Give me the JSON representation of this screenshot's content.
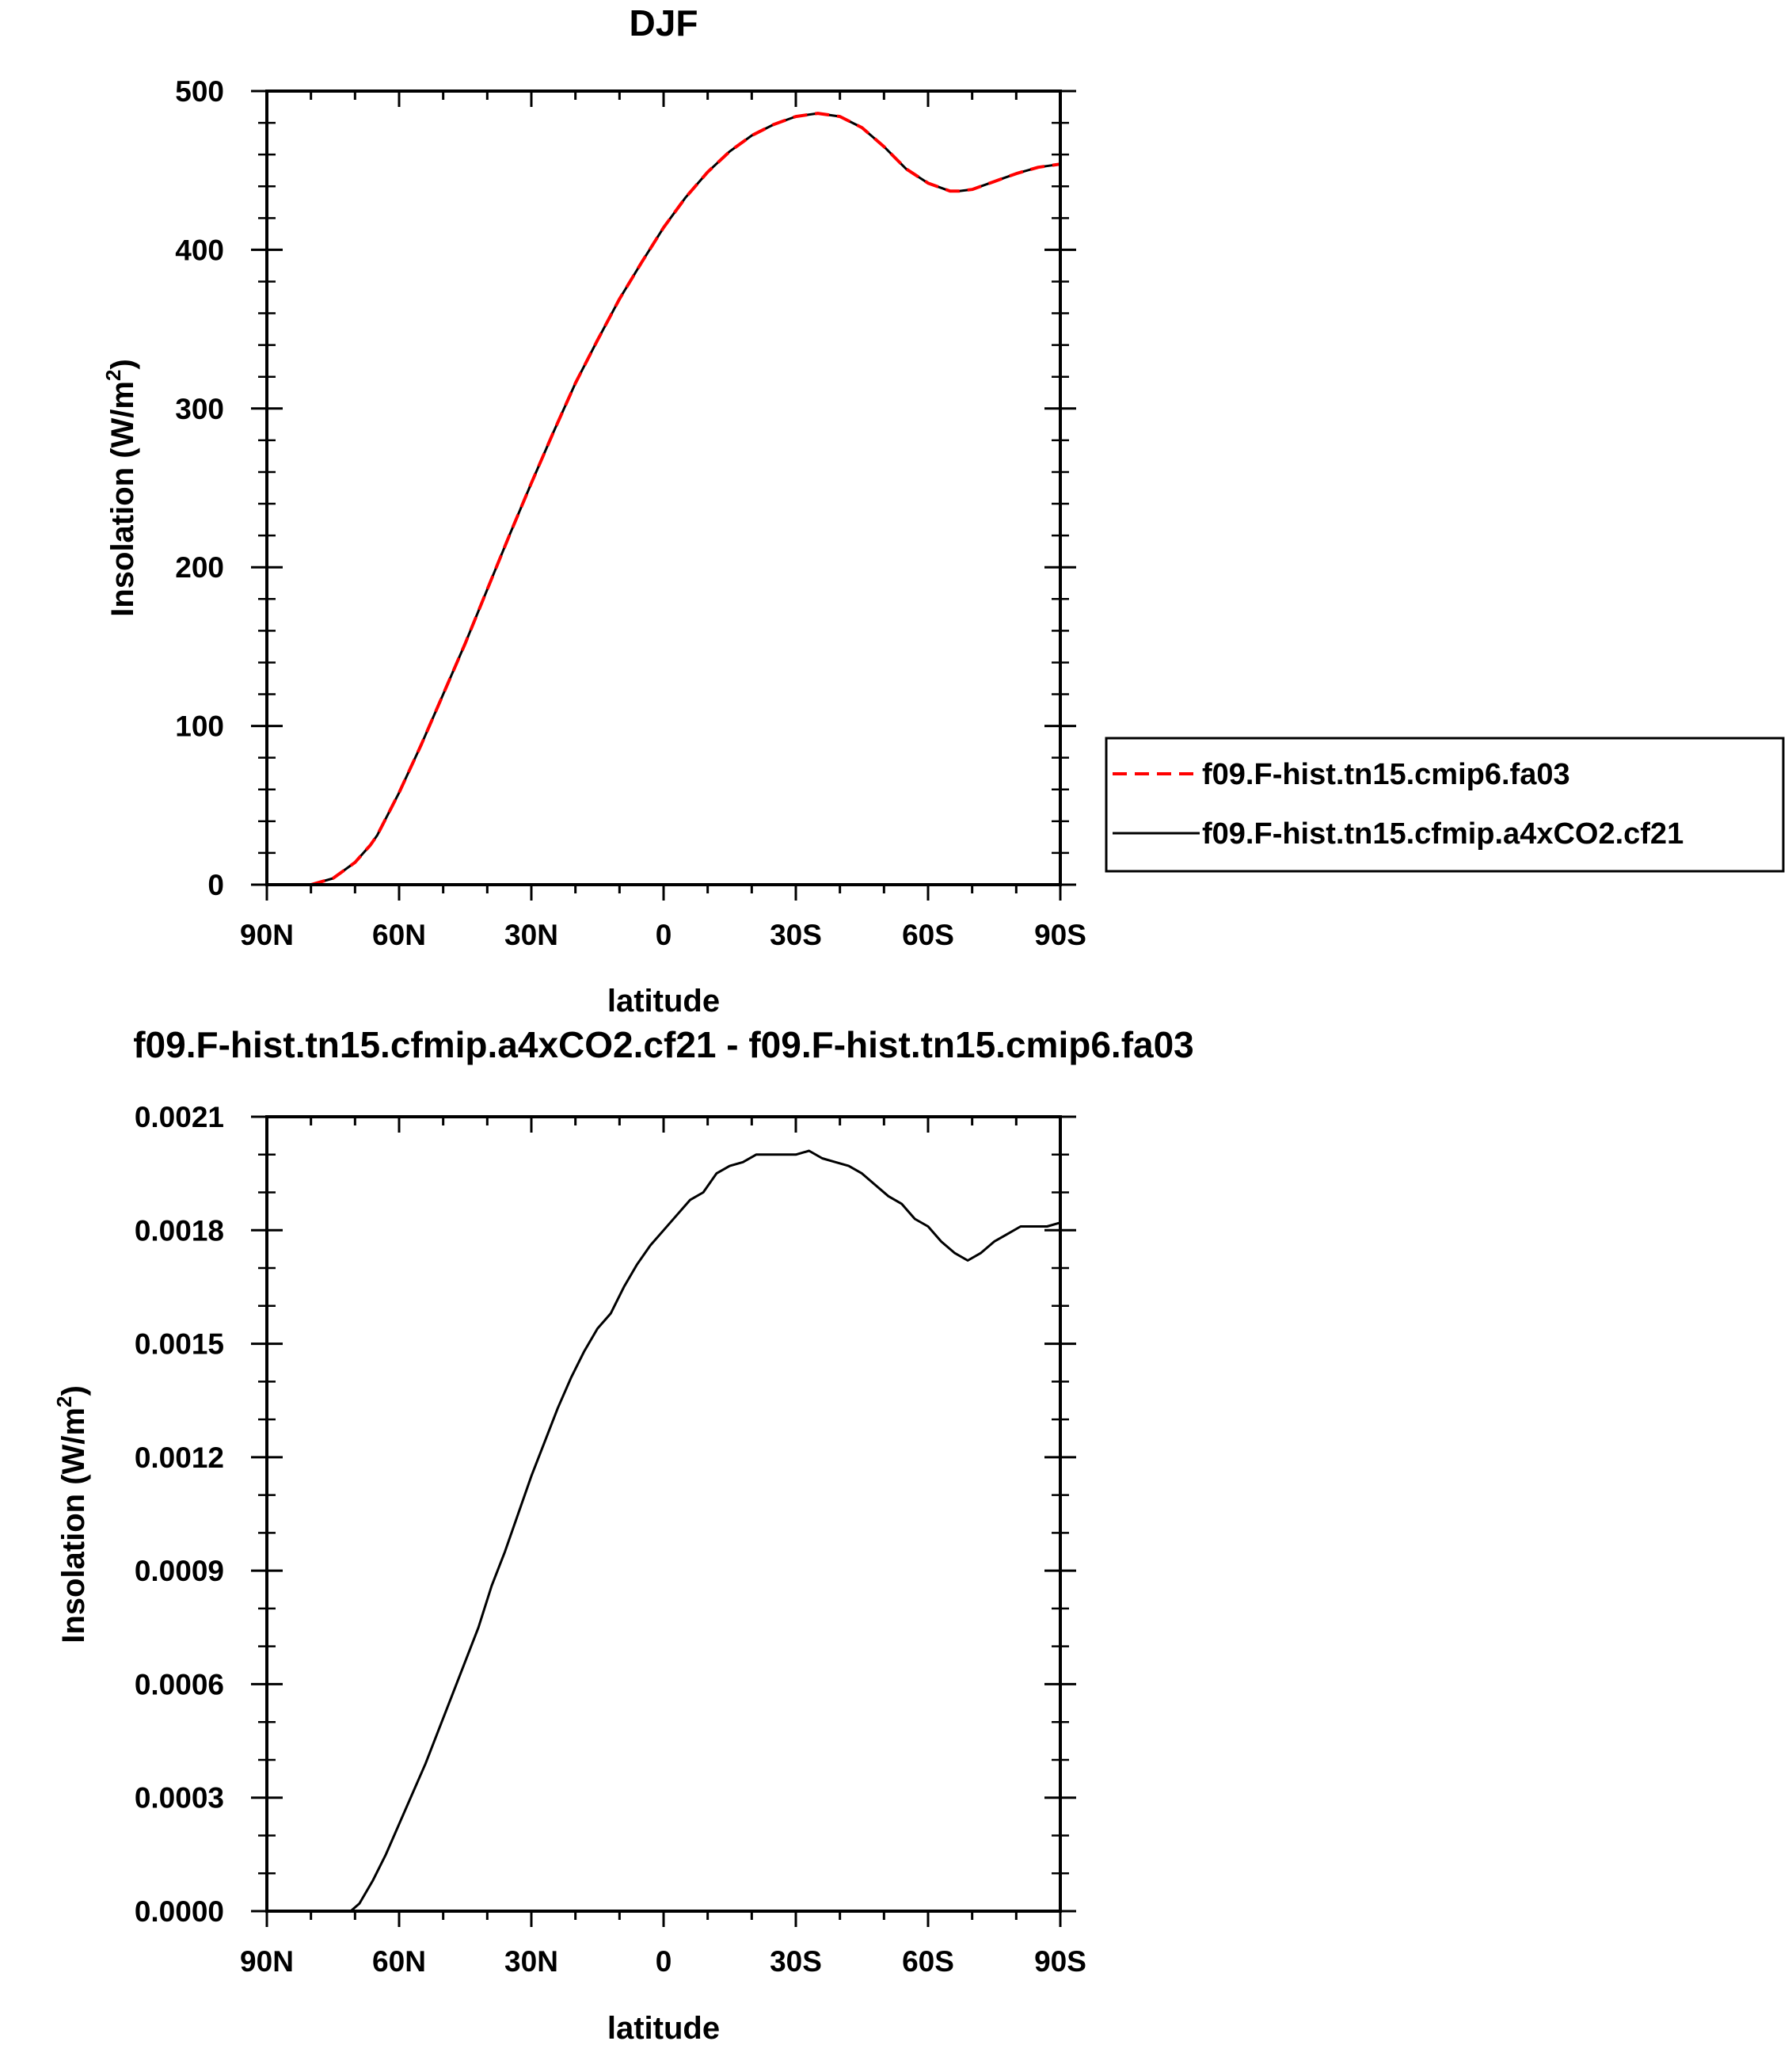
{
  "chart_data": [
    {
      "type": "line",
      "title": "DJF",
      "xlabel": "latitude",
      "ylabel": "Insolation (W/m",
      "ylabel_sup": "2",
      "ylabel_close": ")",
      "xlim": [
        -90,
        90
      ],
      "ylim": [
        0,
        500
      ],
      "x_ticks": [
        -90,
        -60,
        -30,
        0,
        30,
        60,
        90
      ],
      "x_tick_labels": [
        "90N",
        "60N",
        "30N",
        "0",
        "30S",
        "60S",
        "90S"
      ],
      "y_ticks": [
        0,
        100,
        200,
        300,
        400,
        500
      ],
      "y_tick_labels": [
        "0",
        "100",
        "200",
        "300",
        "400",
        "500"
      ],
      "legend_position": "right, outside",
      "x": [
        -90,
        -85,
        -80,
        -75,
        -70,
        -66.5,
        -65,
        -60,
        -55,
        -50,
        -45,
        -40,
        -35,
        -30,
        -25,
        -20,
        -15,
        -10,
        -5,
        0,
        5,
        10,
        15,
        20,
        25,
        30,
        35,
        40,
        45,
        50,
        55,
        60,
        65,
        67,
        70,
        75,
        80,
        85,
        90
      ],
      "series": [
        {
          "name": "f09.F-hist.tn15.cmip6.fa03",
          "color": "#ff0000",
          "style": "dashed",
          "values": [
            0,
            0,
            0,
            4,
            14,
            25,
            31,
            58,
            88,
            120,
            152,
            186,
            220,
            253,
            285,
            316,
            343,
            369,
            392,
            414,
            433,
            449,
            462,
            472,
            479,
            484,
            486,
            484,
            477,
            465,
            451,
            442,
            437,
            437,
            438,
            443,
            448,
            452,
            454
          ]
        },
        {
          "name": "f09.F-hist.tn15.cfmip.a4xCO2.cf21",
          "color": "#000000",
          "style": "solid",
          "values": [
            0,
            0,
            0,
            4,
            14,
            25,
            31,
            58,
            88,
            120,
            152,
            186,
            220,
            253,
            285,
            316,
            343,
            369,
            392,
            414,
            433,
            449,
            462,
            472,
            479,
            484,
            486,
            484,
            477,
            465,
            451,
            442,
            437,
            437,
            438,
            443,
            448,
            452,
            454
          ]
        }
      ]
    },
    {
      "type": "line",
      "title": "f09.F-hist.tn15.cfmip.a4xCO2.cf21 - f09.F-hist.tn15.cmip6.fa03",
      "xlabel": "latitude",
      "ylabel": "Insolation (W/m",
      "ylabel_sup": "2",
      "ylabel_close": ")",
      "xlim": [
        -90,
        90
      ],
      "ylim": [
        0,
        0.0021
      ],
      "x_ticks": [
        -90,
        -60,
        -30,
        0,
        30,
        60,
        90
      ],
      "x_tick_labels": [
        "90N",
        "60N",
        "30N",
        "0",
        "30S",
        "60S",
        "90S"
      ],
      "y_ticks": [
        0,
        0.0003,
        0.0006,
        0.0009,
        0.0012,
        0.0015,
        0.0018,
        0.0021
      ],
      "y_tick_labels": [
        "0.0000",
        "0.0003",
        "0.0006",
        "0.0009",
        "0.0012",
        "0.0015",
        "0.0018",
        "0.0021"
      ],
      "x": [
        -90,
        -80,
        -75,
        -71,
        -69,
        -66,
        -63,
        -60,
        -57,
        -54,
        -51,
        -48,
        -45,
        -42,
        -39,
        -36,
        -33,
        -30,
        -27,
        -24,
        -21,
        -18,
        -15,
        -12,
        -9,
        -6,
        -3,
        0,
        3,
        6,
        9,
        12,
        15,
        18,
        21,
        24,
        27,
        30,
        33,
        36,
        39,
        42,
        45,
        48,
        51,
        54,
        57,
        60,
        63,
        66,
        69,
        72,
        75,
        78,
        81,
        84,
        87,
        90
      ],
      "series": [
        {
          "name": "",
          "color": "#000000",
          "style": "solid",
          "values": [
            0,
            0,
            0,
            0,
            2e-05,
            8e-05,
            0.00015,
            0.00023,
            0.00031,
            0.00039,
            0.00048,
            0.00057,
            0.00066,
            0.00075,
            0.00086,
            0.00095,
            0.00105,
            0.00115,
            0.00124,
            0.00133,
            0.00141,
            0.00148,
            0.00154,
            0.00158,
            0.00165,
            0.00171,
            0.00176,
            0.0018,
            0.00184,
            0.00188,
            0.0019,
            0.00195,
            0.00197,
            0.00198,
            0.002,
            0.002,
            0.002,
            0.002,
            0.00201,
            0.00199,
            0.00198,
            0.00197,
            0.00195,
            0.00192,
            0.00189,
            0.00187,
            0.00183,
            0.00181,
            0.00177,
            0.00174,
            0.00172,
            0.00174,
            0.00177,
            0.00179,
            0.00181,
            0.00181,
            0.00181,
            0.00182
          ]
        }
      ]
    }
  ]
}
